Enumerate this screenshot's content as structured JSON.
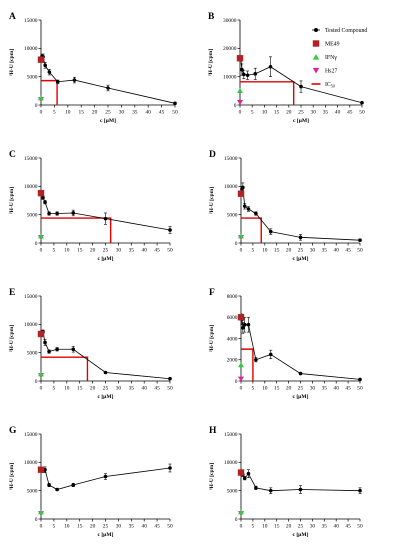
{
  "legend": {
    "position": "top-right",
    "items": [
      {
        "key": "tested",
        "label": "Tested Compound",
        "color": "#000000",
        "marker": "circle"
      },
      {
        "key": "me49",
        "label": "ME49",
        "color": "#b22222",
        "marker": "square"
      },
      {
        "key": "ifng",
        "label": "IFNγ",
        "color": "#2ecc40",
        "marker": "triangle-up"
      },
      {
        "key": "hs27",
        "label": "Hs27",
        "color": "#e0209c",
        "marker": "triangle-down"
      },
      {
        "key": "ic50",
        "label": "IC50",
        "color": "#e00000",
        "marker": "line"
      }
    ]
  },
  "chart_data": [
    {
      "panel": "A",
      "type": "scatter",
      "xlabel": "c [µM]",
      "ylabel": "³H-U [cpm]",
      "xlim": [
        0,
        50
      ],
      "ylim": [
        0,
        15000
      ],
      "xticks": [
        0,
        5,
        10,
        15,
        20,
        25,
        30,
        35,
        40,
        45,
        50
      ],
      "yticks": [
        0,
        5000,
        10000,
        15000
      ],
      "ytick_labels": [
        "0",
        "5000",
        "10000",
        "15000"
      ],
      "tested": {
        "x": [
          0.39,
          0.78,
          1.56,
          3.125,
          6.25,
          12.5,
          25,
          50
        ],
        "y": [
          8600,
          8500,
          7000,
          5800,
          4100,
          4400,
          3000,
          300
        ],
        "err": [
          300,
          500,
          500,
          500,
          300,
          500,
          500,
          200
        ]
      },
      "me49": {
        "x": 0,
        "y": 8000
      },
      "ifng": {
        "x": 0,
        "y": 1200
      },
      "hs27": {
        "x": 0,
        "y": 1000
      },
      "ic50": {
        "x": 6.0,
        "y": 4300
      }
    },
    {
      "panel": "B",
      "type": "scatter",
      "xlabel": "c [µM]",
      "ylabel": "³H-U [cpm]",
      "xlim": [
        0,
        50
      ],
      "ylim": [
        0,
        30000
      ],
      "xticks": [
        0,
        5,
        10,
        15,
        20,
        25,
        30,
        35,
        40,
        45,
        50
      ],
      "yticks": [
        0,
        10000,
        20000,
        30000
      ],
      "ytick_labels": [
        "0",
        "10000",
        "20000",
        "30000"
      ],
      "tested": {
        "x": [
          0.39,
          0.78,
          1.56,
          3.125,
          6.25,
          12.5,
          25,
          50
        ],
        "y": [
          16000,
          12500,
          10800,
          10500,
          11000,
          13500,
          6500,
          800
        ],
        "err": [
          500,
          2000,
          1500,
          1500,
          2000,
          3500,
          2000,
          300
        ]
      },
      "me49": {
        "x": 0,
        "y": 16500
      },
      "ifng": {
        "x": 0,
        "y": 5000
      },
      "hs27": {
        "x": 0,
        "y": 1000
      },
      "ic50": {
        "x": 22.0,
        "y": 8200
      }
    },
    {
      "panel": "C",
      "type": "scatter",
      "xlabel": "c [µM]",
      "ylabel": "³H-U [cpm]",
      "xlim": [
        0,
        50
      ],
      "ylim": [
        0,
        15000
      ],
      "xticks": [
        0,
        5,
        10,
        15,
        20,
        25,
        30,
        35,
        40,
        45,
        50
      ],
      "yticks": [
        0,
        5000,
        10000,
        15000
      ],
      "ytick_labels": [
        "0",
        "5000",
        "10000",
        "15000"
      ],
      "tested": {
        "x": [
          0.39,
          0.78,
          1.56,
          3.125,
          6.25,
          12.5,
          25,
          50
        ],
        "y": [
          8800,
          8000,
          7200,
          5200,
          5200,
          5300,
          4300,
          2300
        ],
        "err": [
          300,
          300,
          300,
          300,
          300,
          500,
          1000,
          600
        ]
      },
      "me49": {
        "x": 0,
        "y": 8800
      },
      "ifng": {
        "x": 0,
        "y": 1200
      },
      "hs27": {
        "x": 0,
        "y": 1000
      },
      "ic50": {
        "x": 27.0,
        "y": 4400
      }
    },
    {
      "panel": "D",
      "type": "scatter",
      "xlabel": "c [µM]",
      "ylabel": "³H-U [cpm]",
      "xlim": [
        0,
        50
      ],
      "ylim": [
        0,
        15000
      ],
      "xticks": [
        0,
        5,
        10,
        15,
        20,
        25,
        30,
        35,
        40,
        45,
        50
      ],
      "yticks": [
        0,
        5000,
        10000,
        15000
      ],
      "ytick_labels": [
        "0",
        "5000",
        "10000",
        "15000"
      ],
      "tested": {
        "x": [
          0.39,
          0.78,
          1.56,
          3.125,
          6.25,
          12.5,
          25,
          50
        ],
        "y": [
          9500,
          9800,
          6500,
          6000,
          5200,
          2000,
          1000,
          500
        ],
        "err": [
          400,
          800,
          500,
          400,
          300,
          500,
          500,
          200
        ]
      },
      "me49": {
        "x": 0,
        "y": 8700
      },
      "ifng": {
        "x": 0,
        "y": 1200
      },
      "hs27": {
        "x": 0,
        "y": 1000
      },
      "ic50": {
        "x": 8.5,
        "y": 4400
      }
    },
    {
      "panel": "E",
      "type": "scatter",
      "xlabel": "c [µM]",
      "ylabel": "³H-U [cpm]",
      "xlim": [
        0,
        50
      ],
      "ylim": [
        0,
        15000
      ],
      "xticks": [
        0,
        5,
        10,
        15,
        20,
        25,
        30,
        35,
        40,
        45,
        50
      ],
      "yticks": [
        0,
        5000,
        10000,
        15000
      ],
      "ytick_labels": [
        "0",
        "5000",
        "10000",
        "15000"
      ],
      "tested": {
        "x": [
          0.39,
          0.78,
          1.56,
          3.125,
          6.25,
          12.5,
          25,
          50
        ],
        "y": [
          8600,
          8700,
          6800,
          5200,
          5600,
          5600,
          1500,
          400
        ],
        "err": [
          300,
          300,
          500,
          300,
          300,
          500,
          200,
          100
        ]
      },
      "me49": {
        "x": 0,
        "y": 8300
      },
      "ifng": {
        "x": 0,
        "y": 1200
      },
      "hs27": {
        "x": 0,
        "y": 1000
      },
      "ic50": {
        "x": 18.0,
        "y": 4200
      }
    },
    {
      "panel": "F",
      "type": "scatter",
      "xlabel": "c [µM]",
      "ylabel": "³H-U [cpm]",
      "xlim": [
        0,
        50
      ],
      "ylim": [
        0,
        8000
      ],
      "xticks": [
        0,
        5,
        10,
        15,
        20,
        25,
        30,
        35,
        40,
        45,
        50
      ],
      "yticks": [
        0,
        2000,
        4000,
        6000,
        8000
      ],
      "ytick_labels": [
        "0",
        "2000",
        "4000",
        "6000",
        "8000"
      ],
      "tested": {
        "x": [
          0.39,
          0.78,
          1.56,
          3.125,
          6.25,
          12.5,
          25,
          50
        ],
        "y": [
          5800,
          5000,
          5300,
          5300,
          2000,
          2500,
          700,
          150
        ],
        "err": [
          500,
          500,
          700,
          700,
          200,
          400,
          100,
          50
        ]
      },
      "me49": {
        "x": 0,
        "y": 6000
      },
      "ifng": {
        "x": 0,
        "y": 1500
      },
      "hs27": {
        "x": 0,
        "y": 200
      },
      "ic50": {
        "x": 5.0,
        "y": 3000
      }
    },
    {
      "panel": "G",
      "type": "scatter",
      "xlabel": "c [µM]",
      "ylabel": "³H-U [cpm]",
      "xlim": [
        0,
        50
      ],
      "ylim": [
        0,
        15000
      ],
      "xticks": [
        0,
        5,
        10,
        15,
        20,
        25,
        30,
        35,
        40,
        45,
        50
      ],
      "yticks": [
        0,
        5000,
        10000,
        15000
      ],
      "ytick_labels": [
        "0",
        "5000",
        "10000",
        "15000"
      ],
      "tested": {
        "x": [
          0.39,
          0.78,
          1.56,
          3.125,
          6.25,
          12.5,
          25,
          50
        ],
        "y": [
          8800,
          8500,
          8700,
          6000,
          5200,
          6000,
          7500,
          9000
        ],
        "err": [
          300,
          300,
          500,
          300,
          200,
          300,
          500,
          700
        ]
      },
      "me49": {
        "x": 0,
        "y": 8700
      },
      "ifng": {
        "x": 0,
        "y": 1200
      },
      "hs27": {
        "x": 0,
        "y": 1000
      }
    },
    {
      "panel": "H",
      "type": "scatter",
      "xlabel": "c [µM]",
      "ylabel": "³H-U [cpm]",
      "xlim": [
        0,
        50
      ],
      "ylim": [
        0,
        15000
      ],
      "xticks": [
        0,
        5,
        10,
        15,
        20,
        25,
        30,
        35,
        40,
        45,
        50
      ],
      "yticks": [
        0,
        5000,
        10000,
        15000
      ],
      "ytick_labels": [
        "0",
        "5000",
        "10000",
        "15000"
      ],
      "tested": {
        "x": [
          0.39,
          0.78,
          1.56,
          3.125,
          6.25,
          12.5,
          25,
          50
        ],
        "y": [
          8200,
          7800,
          7200,
          8000,
          5500,
          5000,
          5200,
          5000
        ],
        "err": [
          300,
          300,
          300,
          700,
          300,
          500,
          700,
          500
        ]
      },
      "me49": {
        "x": 0,
        "y": 8200
      },
      "ifng": {
        "x": 0,
        "y": 1200
      },
      "hs27": {
        "x": 0,
        "y": 1000
      }
    }
  ]
}
